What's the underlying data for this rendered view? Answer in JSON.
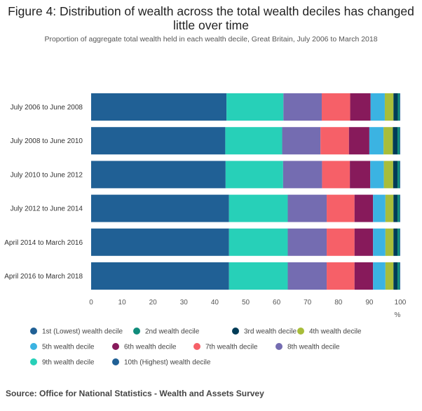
{
  "chart_data": {
    "type": "bar",
    "orientation": "horizontal",
    "stacked": true,
    "title": "Figure 4: Distribution of wealth across the total wealth deciles has changed little over time",
    "subtitle": "Proportion of aggregate total wealth held in each wealth decile, Great Britain, July 2006 to March 2018",
    "xlabel": "%",
    "ylabel": "",
    "xlim": [
      0,
      100
    ],
    "x_ticks": [
      0,
      10,
      20,
      30,
      40,
      50,
      60,
      70,
      80,
      90,
      100
    ],
    "grid": false,
    "legend_position": "bottom",
    "categories": [
      "July 2006 to June 2008",
      "July 2008 to June 2010",
      "July 2010 to June 2012",
      "July 2012 to June 2014",
      "April 2014 to March 2016",
      "April 2016 to March 2018"
    ],
    "series": [
      {
        "name": "10th (Highest) wealth decile",
        "color": "#206095",
        "values": [
          43.8,
          43.4,
          43.5,
          44.6,
          44.6,
          44.6
        ]
      },
      {
        "name": "9th wealth decile",
        "color": "#27d0b8",
        "values": [
          18.4,
          18.4,
          18.6,
          19.0,
          19.0,
          19.0
        ]
      },
      {
        "name": "8th wealth decile",
        "color": "#746cb1",
        "values": [
          12.4,
          12.4,
          12.6,
          12.6,
          12.6,
          12.6
        ]
      },
      {
        "name": "7th wealth decile",
        "color": "#f66068",
        "values": [
          9.2,
          9.2,
          9.0,
          9.0,
          9.0,
          9.0
        ]
      },
      {
        "name": "6th wealth decile",
        "color": "#871a5b",
        "values": [
          6.6,
          6.6,
          6.6,
          6.0,
          6.0,
          6.0
        ]
      },
      {
        "name": "5th wealth decile",
        "color": "#3bb3e2",
        "values": [
          4.6,
          4.6,
          4.4,
          4.0,
          4.0,
          4.0
        ]
      },
      {
        "name": "4th wealth decile",
        "color": "#a8bd3a",
        "values": [
          2.8,
          3.0,
          3.0,
          2.6,
          2.6,
          2.6
        ]
      },
      {
        "name": "3rd wealth decile",
        "color": "#003c57",
        "values": [
          1.4,
          1.5,
          1.4,
          1.3,
          1.3,
          1.3
        ]
      },
      {
        "name": "2nd wealth decile",
        "color": "#118c7b",
        "values": [
          0.6,
          0.7,
          0.7,
          0.7,
          0.7,
          0.7
        ]
      },
      {
        "name": "1st (Lowest) wealth decile",
        "color": "#206095",
        "values": [
          0.2,
          0.2,
          0.2,
          0.2,
          0.2,
          0.2
        ]
      }
    ],
    "legend": [
      {
        "name": "1st (Lowest) wealth decile",
        "color": "#206095"
      },
      {
        "name": "2nd wealth decile",
        "color": "#118c7b"
      },
      {
        "name": "3rd wealth decile",
        "color": "#003c57"
      },
      {
        "name": "4th wealth decile",
        "color": "#a8bd3a"
      },
      {
        "name": "5th wealth decile",
        "color": "#3bb3e2"
      },
      {
        "name": "6th wealth decile",
        "color": "#871a5b"
      },
      {
        "name": "7th wealth decile",
        "color": "#f66068"
      },
      {
        "name": "8th wealth decile",
        "color": "#746cb1"
      },
      {
        "name": "9th wealth decile",
        "color": "#27d0b8"
      },
      {
        "name": "10th (Highest) wealth decile",
        "color": "#206095"
      }
    ]
  },
  "source": "Source: Office for National Statistics - Wealth and Assets Survey"
}
